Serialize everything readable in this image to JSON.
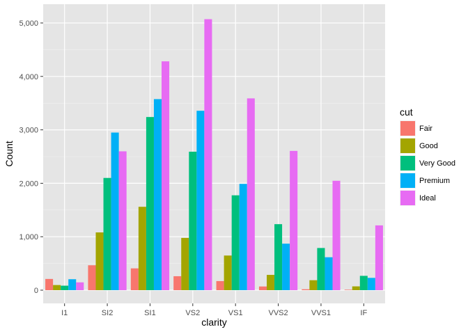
{
  "chart_data": {
    "type": "bar",
    "grouping": "dodge",
    "xlabel": "clarity",
    "ylabel": "Count",
    "ylim": [
      0,
      5300
    ],
    "yticks": [
      0,
      1000,
      2000,
      3000,
      4000,
      5000
    ],
    "ytick_labels": [
      "0",
      "1,000",
      "2,000",
      "3,000",
      "4,000",
      "5,000"
    ],
    "categories": [
      "I1",
      "SI2",
      "SI1",
      "VS2",
      "VS1",
      "VVS2",
      "VVS1",
      "IF"
    ],
    "grid": true,
    "background": "#e5e5e5",
    "legend": {
      "title": "cut",
      "position": "right"
    },
    "series": [
      {
        "name": "Fair",
        "color": "#f8766d",
        "values": [
          210,
          466,
          408,
          261,
          170,
          69,
          17,
          9
        ]
      },
      {
        "name": "Good",
        "color": "#a3a500",
        "values": [
          96,
          1081,
          1560,
          978,
          648,
          286,
          186,
          71
        ]
      },
      {
        "name": "Very Good",
        "color": "#00bf7d",
        "values": [
          84,
          2100,
          3240,
          2591,
          1775,
          1235,
          789,
          268
        ]
      },
      {
        "name": "Premium",
        "color": "#00b0f6",
        "values": [
          205,
          2949,
          3575,
          3357,
          1989,
          870,
          616,
          230
        ]
      },
      {
        "name": "Ideal",
        "color": "#e76bf3",
        "values": [
          146,
          2598,
          4282,
          5071,
          3589,
          2606,
          2047,
          1212
        ]
      }
    ]
  }
}
